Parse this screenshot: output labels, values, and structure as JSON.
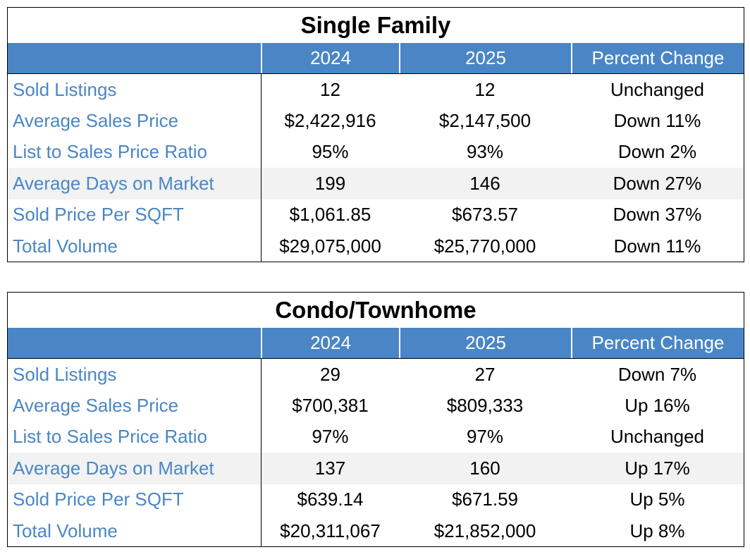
{
  "tables": [
    {
      "title": "Single Family",
      "headers": [
        "",
        "2024",
        "2025",
        "Percent Change"
      ],
      "rows": [
        {
          "label": "Sold Listings",
          "y2024": "12",
          "y2025": "12",
          "change": "Unchanged"
        },
        {
          "label": "Average Sales Price",
          "y2024": "$2,422,916",
          "y2025": "$2,147,500",
          "change": "Down 11%"
        },
        {
          "label": "List to Sales Price Ratio",
          "y2024": "95%",
          "y2025": "93%",
          "change": "Down 2%"
        },
        {
          "label": "Average Days on Market",
          "y2024": "199",
          "y2025": "146",
          "change": "Down 27%"
        },
        {
          "label": "Sold Price Per SQFT",
          "y2024": "$1,061.85",
          "y2025": "$673.57",
          "change": "Down 37%"
        },
        {
          "label": "Total Volume",
          "y2024": "$29,075,000",
          "y2025": "$25,770,000",
          "change": "Down 11%"
        }
      ]
    },
    {
      "title": "Condo/Townhome",
      "headers": [
        "",
        "2024",
        "2025",
        "Percent Change"
      ],
      "rows": [
        {
          "label": "Sold Listings",
          "y2024": "29",
          "y2025": "27",
          "change": "Down 7%"
        },
        {
          "label": "Average Sales Price",
          "y2024": "$700,381",
          "y2025": "$809,333",
          "change": "Up 16%"
        },
        {
          "label": "List to Sales Price Ratio",
          "y2024": "97%",
          "y2025": "97%",
          "change": "Unchanged"
        },
        {
          "label": "Average Days on Market",
          "y2024": "137",
          "y2025": "160",
          "change": "Up 17%"
        },
        {
          "label": "Sold Price Per SQFT",
          "y2024": "$639.14",
          "y2025": "$671.59",
          "change": "Up 5%"
        },
        {
          "label": "Total Volume",
          "y2024": "$20,311,067",
          "y2025": "$21,852,000",
          "change": "Up 8%"
        }
      ]
    }
  ],
  "colors": {
    "header_bg": "#4a86c5",
    "label_text": "#4a86c5",
    "alt_row_bg": "#f2f2f2"
  }
}
